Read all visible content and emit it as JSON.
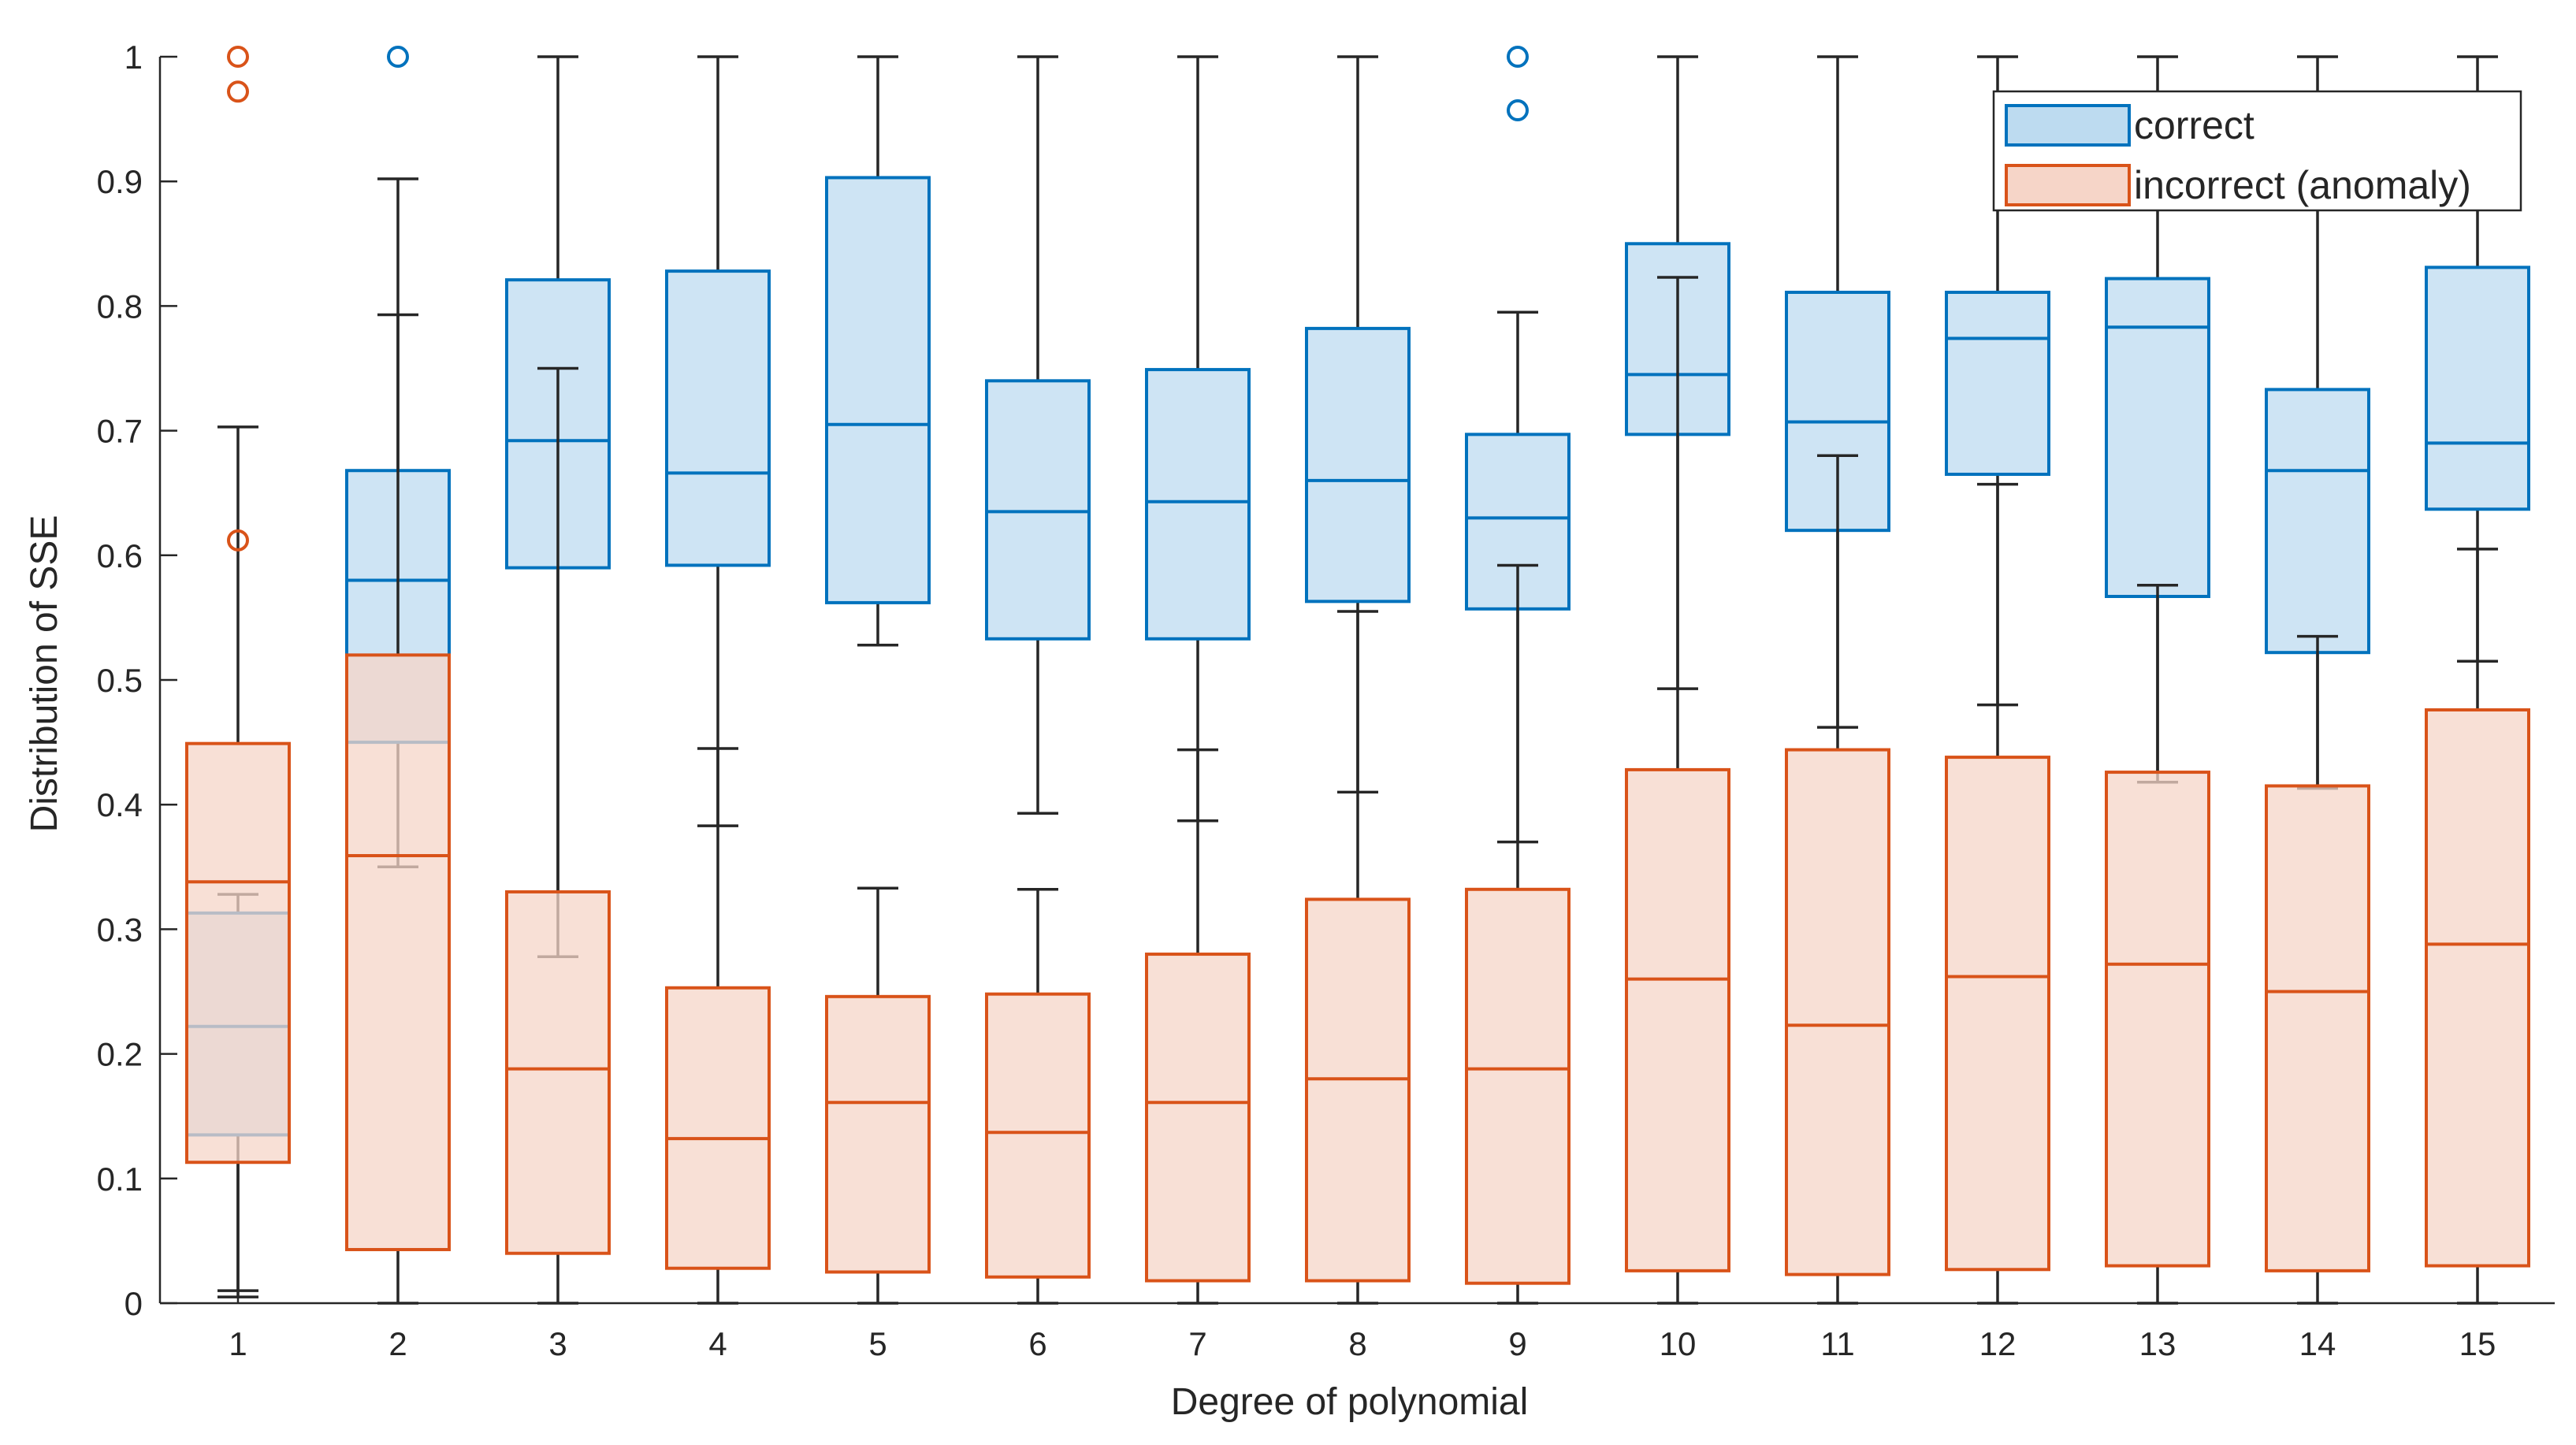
{
  "chart_data": {
    "type": "boxplot",
    "title": "",
    "xlabel": "Degree of polynomial",
    "ylabel": "Distribution of SSE",
    "ylim": [
      0,
      1
    ],
    "yticks": [
      "0",
      "0.1",
      "0.2",
      "0.3",
      "0.4",
      "0.5",
      "0.6",
      "0.7",
      "0.8",
      "0.9",
      "1"
    ],
    "categories": [
      "1",
      "2",
      "3",
      "4",
      "5",
      "6",
      "7",
      "8",
      "9",
      "10",
      "11",
      "12",
      "13",
      "14",
      "15"
    ],
    "grid": false,
    "legend_position": "top-right",
    "series": [
      {
        "name": "correct",
        "edge_color": "#0072BD",
        "fill_color": "#BDDBF0",
        "boxes": [
          {
            "whisker_low": 0.005,
            "q1": 0.135,
            "median": 0.222,
            "q3": 0.313,
            "whisker_high": 0.328,
            "outliers": []
          },
          {
            "whisker_low": 0.35,
            "q1": 0.45,
            "median": 0.58,
            "q3": 0.668,
            "whisker_high": 0.793,
            "outliers": [
              1.0
            ]
          },
          {
            "whisker_low": 0.278,
            "q1": 0.59,
            "median": 0.692,
            "q3": 0.821,
            "whisker_high": 1.0,
            "outliers": []
          },
          {
            "whisker_low": 0.383,
            "q1": 0.592,
            "median": 0.666,
            "q3": 0.828,
            "whisker_high": 1.0,
            "outliers": []
          },
          {
            "whisker_low": 0.528,
            "q1": 0.562,
            "median": 0.705,
            "q3": 0.903,
            "whisker_high": 1.0,
            "outliers": []
          },
          {
            "whisker_low": 0.393,
            "q1": 0.533,
            "median": 0.635,
            "q3": 0.74,
            "whisker_high": 1.0,
            "outliers": []
          },
          {
            "whisker_low": 0.387,
            "q1": 0.533,
            "median": 0.643,
            "q3": 0.749,
            "whisker_high": 1.0,
            "outliers": []
          },
          {
            "whisker_low": 0.41,
            "q1": 0.563,
            "median": 0.66,
            "q3": 0.782,
            "whisker_high": 1.0,
            "outliers": []
          },
          {
            "whisker_low": 0.37,
            "q1": 0.557,
            "median": 0.63,
            "q3": 0.697,
            "whisker_high": 0.795,
            "outliers": [
              1.0,
              0.957
            ]
          },
          {
            "whisker_low": 0.493,
            "q1": 0.697,
            "median": 0.745,
            "q3": 0.85,
            "whisker_high": 1.0,
            "outliers": []
          },
          {
            "whisker_low": 0.462,
            "q1": 0.62,
            "median": 0.707,
            "q3": 0.811,
            "whisker_high": 1.0,
            "outliers": []
          },
          {
            "whisker_low": 0.48,
            "q1": 0.665,
            "median": 0.774,
            "q3": 0.811,
            "whisker_high": 1.0,
            "outliers": []
          },
          {
            "whisker_low": 0.418,
            "q1": 0.567,
            "median": 0.783,
            "q3": 0.822,
            "whisker_high": 1.0,
            "outliers": []
          },
          {
            "whisker_low": 0.413,
            "q1": 0.522,
            "median": 0.668,
            "q3": 0.733,
            "whisker_high": 1.0,
            "outliers": []
          },
          {
            "whisker_low": 0.515,
            "q1": 0.637,
            "median": 0.69,
            "q3": 0.831,
            "whisker_high": 1.0,
            "outliers": []
          }
        ]
      },
      {
        "name": "incorrect (anomaly)",
        "edge_color": "#D95319",
        "fill_color": "#F6D5C8",
        "boxes": [
          {
            "whisker_low": 0.01,
            "q1": 0.113,
            "median": 0.338,
            "q3": 0.449,
            "whisker_high": 0.703,
            "outliers": [
              0.612,
              1.0,
              0.972
            ]
          },
          {
            "whisker_low": 0.0,
            "q1": 0.043,
            "median": 0.359,
            "q3": 0.52,
            "whisker_high": 0.902,
            "outliers": []
          },
          {
            "whisker_low": 0.0,
            "q1": 0.04,
            "median": 0.188,
            "q3": 0.33,
            "whisker_high": 0.75,
            "outliers": []
          },
          {
            "whisker_low": 0.0,
            "q1": 0.028,
            "median": 0.132,
            "q3": 0.253,
            "whisker_high": 0.445,
            "outliers": []
          },
          {
            "whisker_low": 0.0,
            "q1": 0.025,
            "median": 0.161,
            "q3": 0.246,
            "whisker_high": 0.333,
            "outliers": []
          },
          {
            "whisker_low": 0.0,
            "q1": 0.021,
            "median": 0.137,
            "q3": 0.248,
            "whisker_high": 0.332,
            "outliers": []
          },
          {
            "whisker_low": 0.0,
            "q1": 0.018,
            "median": 0.161,
            "q3": 0.28,
            "whisker_high": 0.444,
            "outliers": []
          },
          {
            "whisker_low": 0.0,
            "q1": 0.018,
            "median": 0.18,
            "q3": 0.324,
            "whisker_high": 0.555,
            "outliers": []
          },
          {
            "whisker_low": 0.0,
            "q1": 0.016,
            "median": 0.188,
            "q3": 0.332,
            "whisker_high": 0.592,
            "outliers": []
          },
          {
            "whisker_low": 0.0,
            "q1": 0.026,
            "median": 0.26,
            "q3": 0.428,
            "whisker_high": 0.823,
            "outliers": []
          },
          {
            "whisker_low": 0.0,
            "q1": 0.023,
            "median": 0.223,
            "q3": 0.444,
            "whisker_high": 0.68,
            "outliers": []
          },
          {
            "whisker_low": 0.0,
            "q1": 0.027,
            "median": 0.262,
            "q3": 0.438,
            "whisker_high": 0.657,
            "outliers": []
          },
          {
            "whisker_low": 0.0,
            "q1": 0.03,
            "median": 0.272,
            "q3": 0.426,
            "whisker_high": 0.576,
            "outliers": []
          },
          {
            "whisker_low": 0.0,
            "q1": 0.026,
            "median": 0.25,
            "q3": 0.415,
            "whisker_high": 0.535,
            "outliers": []
          },
          {
            "whisker_low": 0.0,
            "q1": 0.03,
            "median": 0.288,
            "q3": 0.476,
            "whisker_high": 0.605,
            "outliers": []
          }
        ]
      }
    ]
  }
}
